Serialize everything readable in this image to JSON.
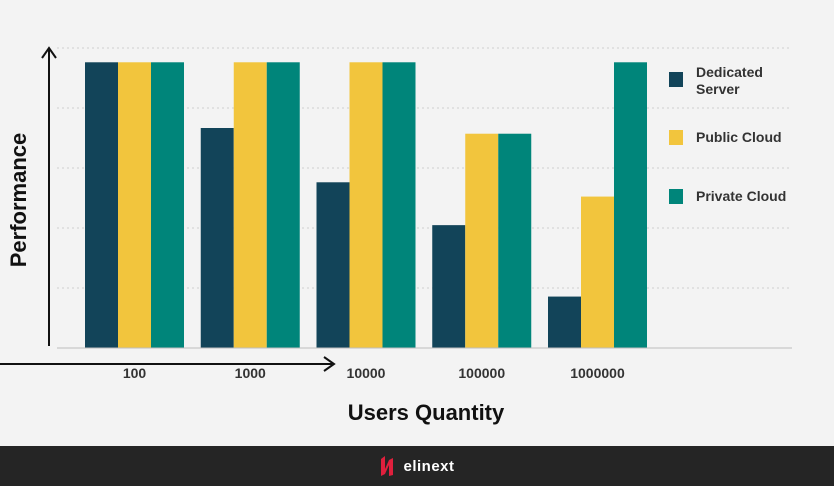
{
  "chart_data": {
    "type": "bar",
    "categories": [
      "100",
      "1000",
      "10000",
      "100000",
      "1000000"
    ],
    "series": [
      {
        "name": "Dedicated Server",
        "values": [
          100,
          77,
          58,
          43,
          18
        ],
        "color": "#124459"
      },
      {
        "name": "Public Cloud",
        "values": [
          100,
          100,
          100,
          75,
          53
        ],
        "color": "#f2c53d"
      },
      {
        "name": "Private Cloud",
        "values": [
          100,
          100,
          100,
          75,
          100
        ],
        "color": "#00857a"
      }
    ],
    "title": "",
    "xlabel": "Users Quantity",
    "ylabel": "Performance",
    "ylim": [
      0,
      105
    ],
    "grid": true,
    "legend_position": "right",
    "legend_labels": [
      {
        "lines": [
          "Dedicated",
          "Server"
        ]
      },
      {
        "lines": [
          "Public Cloud"
        ]
      },
      {
        "lines": [
          "Private Cloud"
        ]
      }
    ]
  },
  "footer": {
    "brand": "elinext",
    "background": "#252525",
    "logo_color": "#e0203d"
  }
}
